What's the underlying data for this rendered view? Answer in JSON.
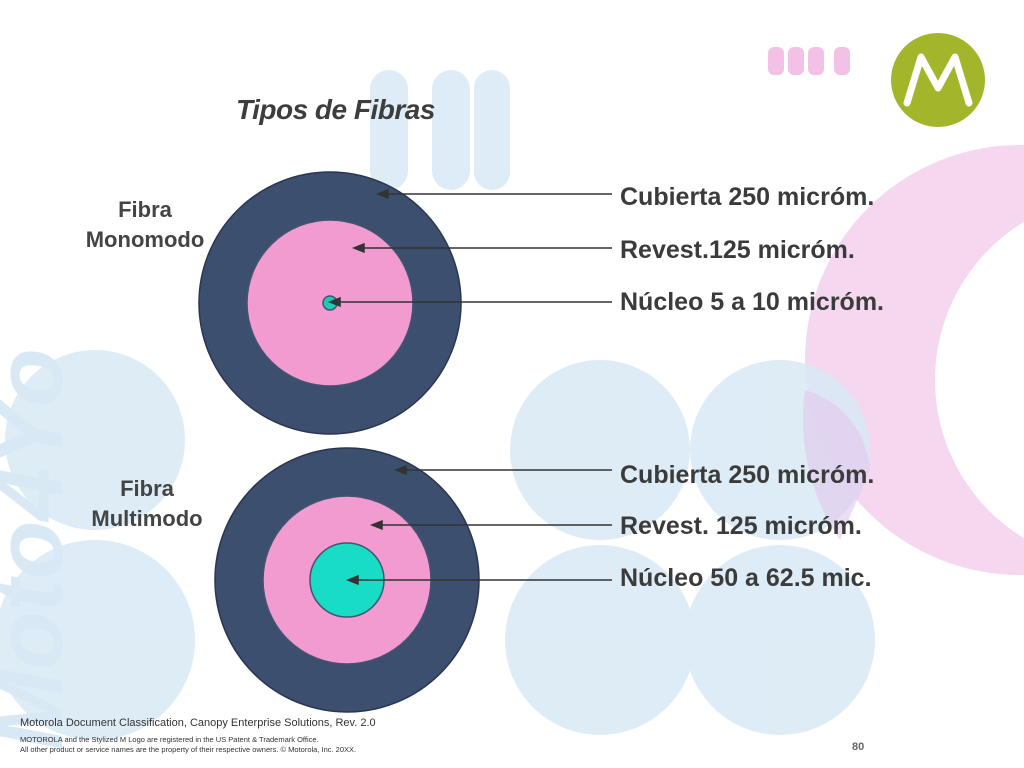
{
  "slide": {
    "title": "Tipos de Fibras",
    "watermark_text": "Moto4Yo",
    "page_number": "80"
  },
  "fibers": [
    {
      "label_line1": "Fibra",
      "label_line2": "Monomodo",
      "callouts": [
        "Cubierta 250 micróm.",
        "Revest.125 micróm.",
        "Núcleo  5 a 10 micróm."
      ]
    },
    {
      "label_line1": "Fibra",
      "label_line2": "Multimodo",
      "callouts": [
        "Cubierta 250 micróm.",
        "Revest. 125 micróm.",
        "Núcleo 50 a 62.5 mic."
      ]
    }
  ],
  "footer": {
    "classification": "Motorola Document Classification, Canopy Enterprise Solutions, Rev. 2.0",
    "legal_line1": "MOTOROLA and the Stylized M Logo are registered in the US Patent & Trademark Office.",
    "legal_line2": "All other product or service names are the property of their respective owners. © Motorola, Inc. 20XX."
  },
  "colors": {
    "jacket": "#3d4f6e",
    "cladding": "#f29bd0",
    "single_mode_core": "#1ec9b5",
    "multi_mode_core": "#19dcc6",
    "logo_green": "#a3b52a",
    "deco_blue": "#d8e9f5",
    "deco_pink": "#f5d3ee"
  },
  "icons": {
    "brand_logo": "motorola-m-logo-icon"
  }
}
